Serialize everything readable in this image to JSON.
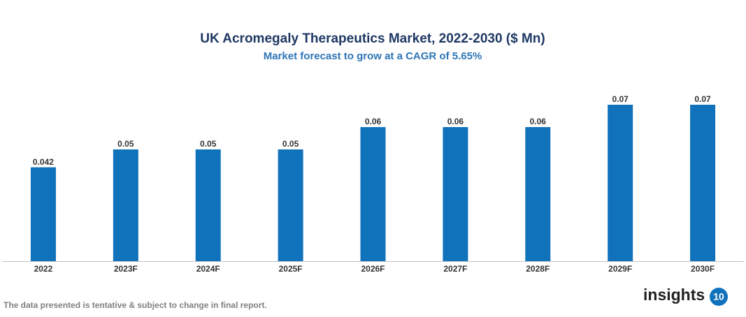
{
  "chart_data": {
    "type": "bar",
    "title": "UK Acromegaly Therapeutics Market, 2022-2030 ($ Mn)",
    "subtitle": "Market forecast to grow at a CAGR of 5.65%",
    "categories": [
      "2022",
      "2023F",
      "2024F",
      "2025F",
      "2026F",
      "2027F",
      "2028F",
      "2029F",
      "2030F"
    ],
    "values": [
      0.042,
      0.05,
      0.05,
      0.05,
      0.06,
      0.06,
      0.06,
      0.07,
      0.07
    ],
    "color": "#1172bc"
  },
  "footer": {
    "note": "The data presented is tentative & subject to change in final report.",
    "logo_text": "insights",
    "logo_badge": "10"
  }
}
